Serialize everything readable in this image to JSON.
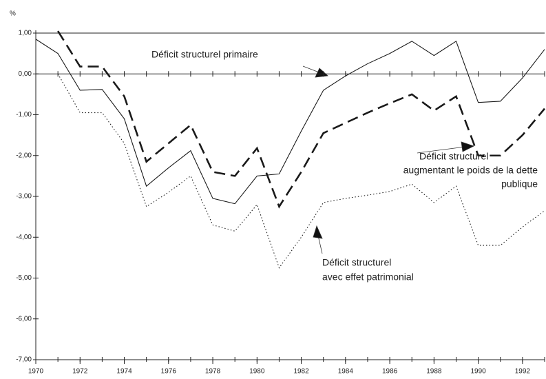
{
  "chart_data": {
    "type": "line",
    "y_label": "%",
    "x": [
      1970,
      1971,
      1972,
      1973,
      1974,
      1975,
      1976,
      1977,
      1978,
      1979,
      1980,
      1981,
      1982,
      1983,
      1984,
      1985,
      1986,
      1987,
      1988,
      1989,
      1990,
      1991,
      1992,
      1993
    ],
    "series": [
      {
        "name": [
          "Déficit structurel primaire"
        ],
        "color": "#1a1a1a",
        "style": "solid",
        "values": [
          0.85,
          0.5,
          -0.4,
          -0.38,
          -1.1,
          -2.75,
          -2.3,
          -1.88,
          -3.05,
          -3.18,
          -2.5,
          -2.45,
          -1.4,
          -0.4,
          -0.05,
          0.25,
          0.5,
          0.8,
          0.45,
          0.8,
          -0.7,
          -0.67,
          -0.1,
          0.6
        ]
      },
      {
        "name": [
          "Déficit structurel",
          "augmentant le poids de la dette",
          "publique"
        ],
        "color": "#1a1a1a",
        "style": "dashed",
        "values": [
          null,
          1.05,
          0.18,
          0.18,
          -0.55,
          -2.15,
          -1.7,
          -1.25,
          -2.4,
          -2.5,
          -1.82,
          -3.25,
          -2.4,
          -1.45,
          -1.2,
          -0.95,
          -0.72,
          -0.5,
          -0.9,
          -0.55,
          -2.0,
          -2.0,
          -1.5,
          -0.85
        ]
      },
      {
        "name": [
          "Déficit structurel",
          "avec effet patrimonial"
        ],
        "color": "#1a1a1a",
        "style": "dotted",
        "values": [
          null,
          0.0,
          -0.95,
          -0.95,
          -1.7,
          -3.25,
          -2.9,
          -2.5,
          -3.7,
          -3.85,
          -3.2,
          -4.75,
          -4.0,
          -3.15,
          -3.05,
          -2.97,
          -2.88,
          -2.7,
          -3.15,
          -2.75,
          -4.2,
          -4.2,
          -3.75,
          -3.35
        ]
      }
    ],
    "xlim": [
      1970,
      1993
    ],
    "xticks": [
      1970,
      1972,
      1974,
      1976,
      1978,
      1980,
      1982,
      1984,
      1986,
      1988,
      1990,
      1992
    ],
    "ylim": [
      -7,
      1
    ],
    "yticks": [
      {
        "value": 1,
        "label": "1,00"
      },
      {
        "value": 0,
        "label": "0,00"
      },
      {
        "value": -1,
        "label": "-1,00"
      },
      {
        "value": -2,
        "label": "-2,00"
      },
      {
        "value": -3,
        "label": "-3,00"
      },
      {
        "value": -4,
        "label": "-4,00"
      },
      {
        "value": -5,
        "label": "-5,00"
      },
      {
        "value": -6,
        "label": "-6,00"
      },
      {
        "value": -7,
        "label": "-7,00"
      }
    ],
    "grid": false
  }
}
